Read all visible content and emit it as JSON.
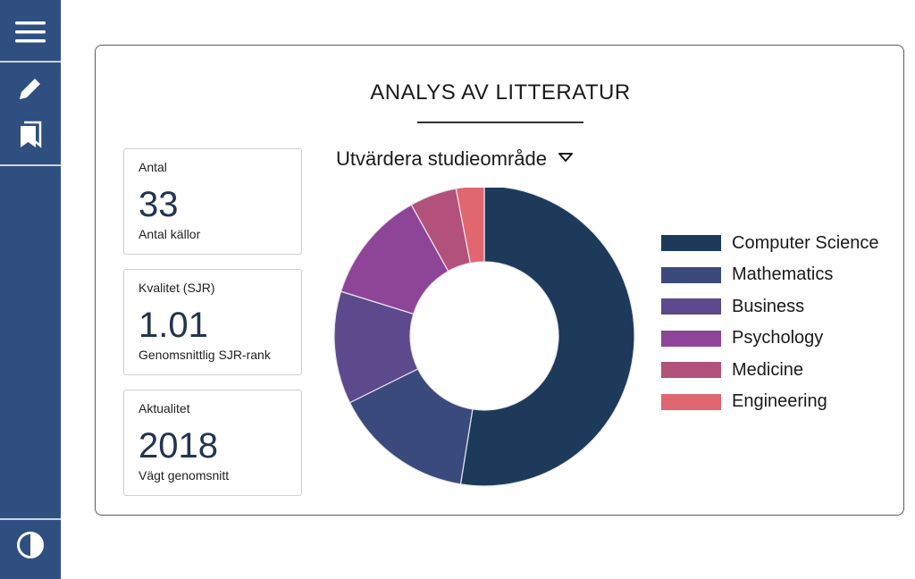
{
  "sidebar": {
    "items": [
      {
        "icon": "menu-icon"
      },
      {
        "icon": "pencil-icon"
      },
      {
        "icon": "bookmarks-icon"
      },
      {
        "icon": "contrast-icon"
      }
    ],
    "color": "#2e4f80"
  },
  "card": {
    "title": "ANALYS AV LITTERATUR",
    "stats": [
      {
        "label": "Antal",
        "value": "33",
        "sub": "Antal källor"
      },
      {
        "label": "Kvalitet (SJR)",
        "value": "1.01",
        "sub": "Genomsnittlig SJR-rank"
      },
      {
        "label": "Aktualitet",
        "value": "2018",
        "sub": "Vägt genomsnitt"
      }
    ],
    "dropdown": {
      "selected": "Utvärdera studieområde"
    }
  },
  "chart_data": {
    "type": "pie",
    "donut": true,
    "categories": [
      "Computer Science",
      "Mathematics",
      "Business",
      "Psychology",
      "Medicine",
      "Engineering"
    ],
    "values": [
      52,
      15,
      12,
      12,
      5,
      3
    ],
    "colors": [
      "#1e3a5a",
      "#3b4a7c",
      "#5c4a8c",
      "#8f4597",
      "#b2517a",
      "#e06670"
    ],
    "legend_position": "right"
  }
}
